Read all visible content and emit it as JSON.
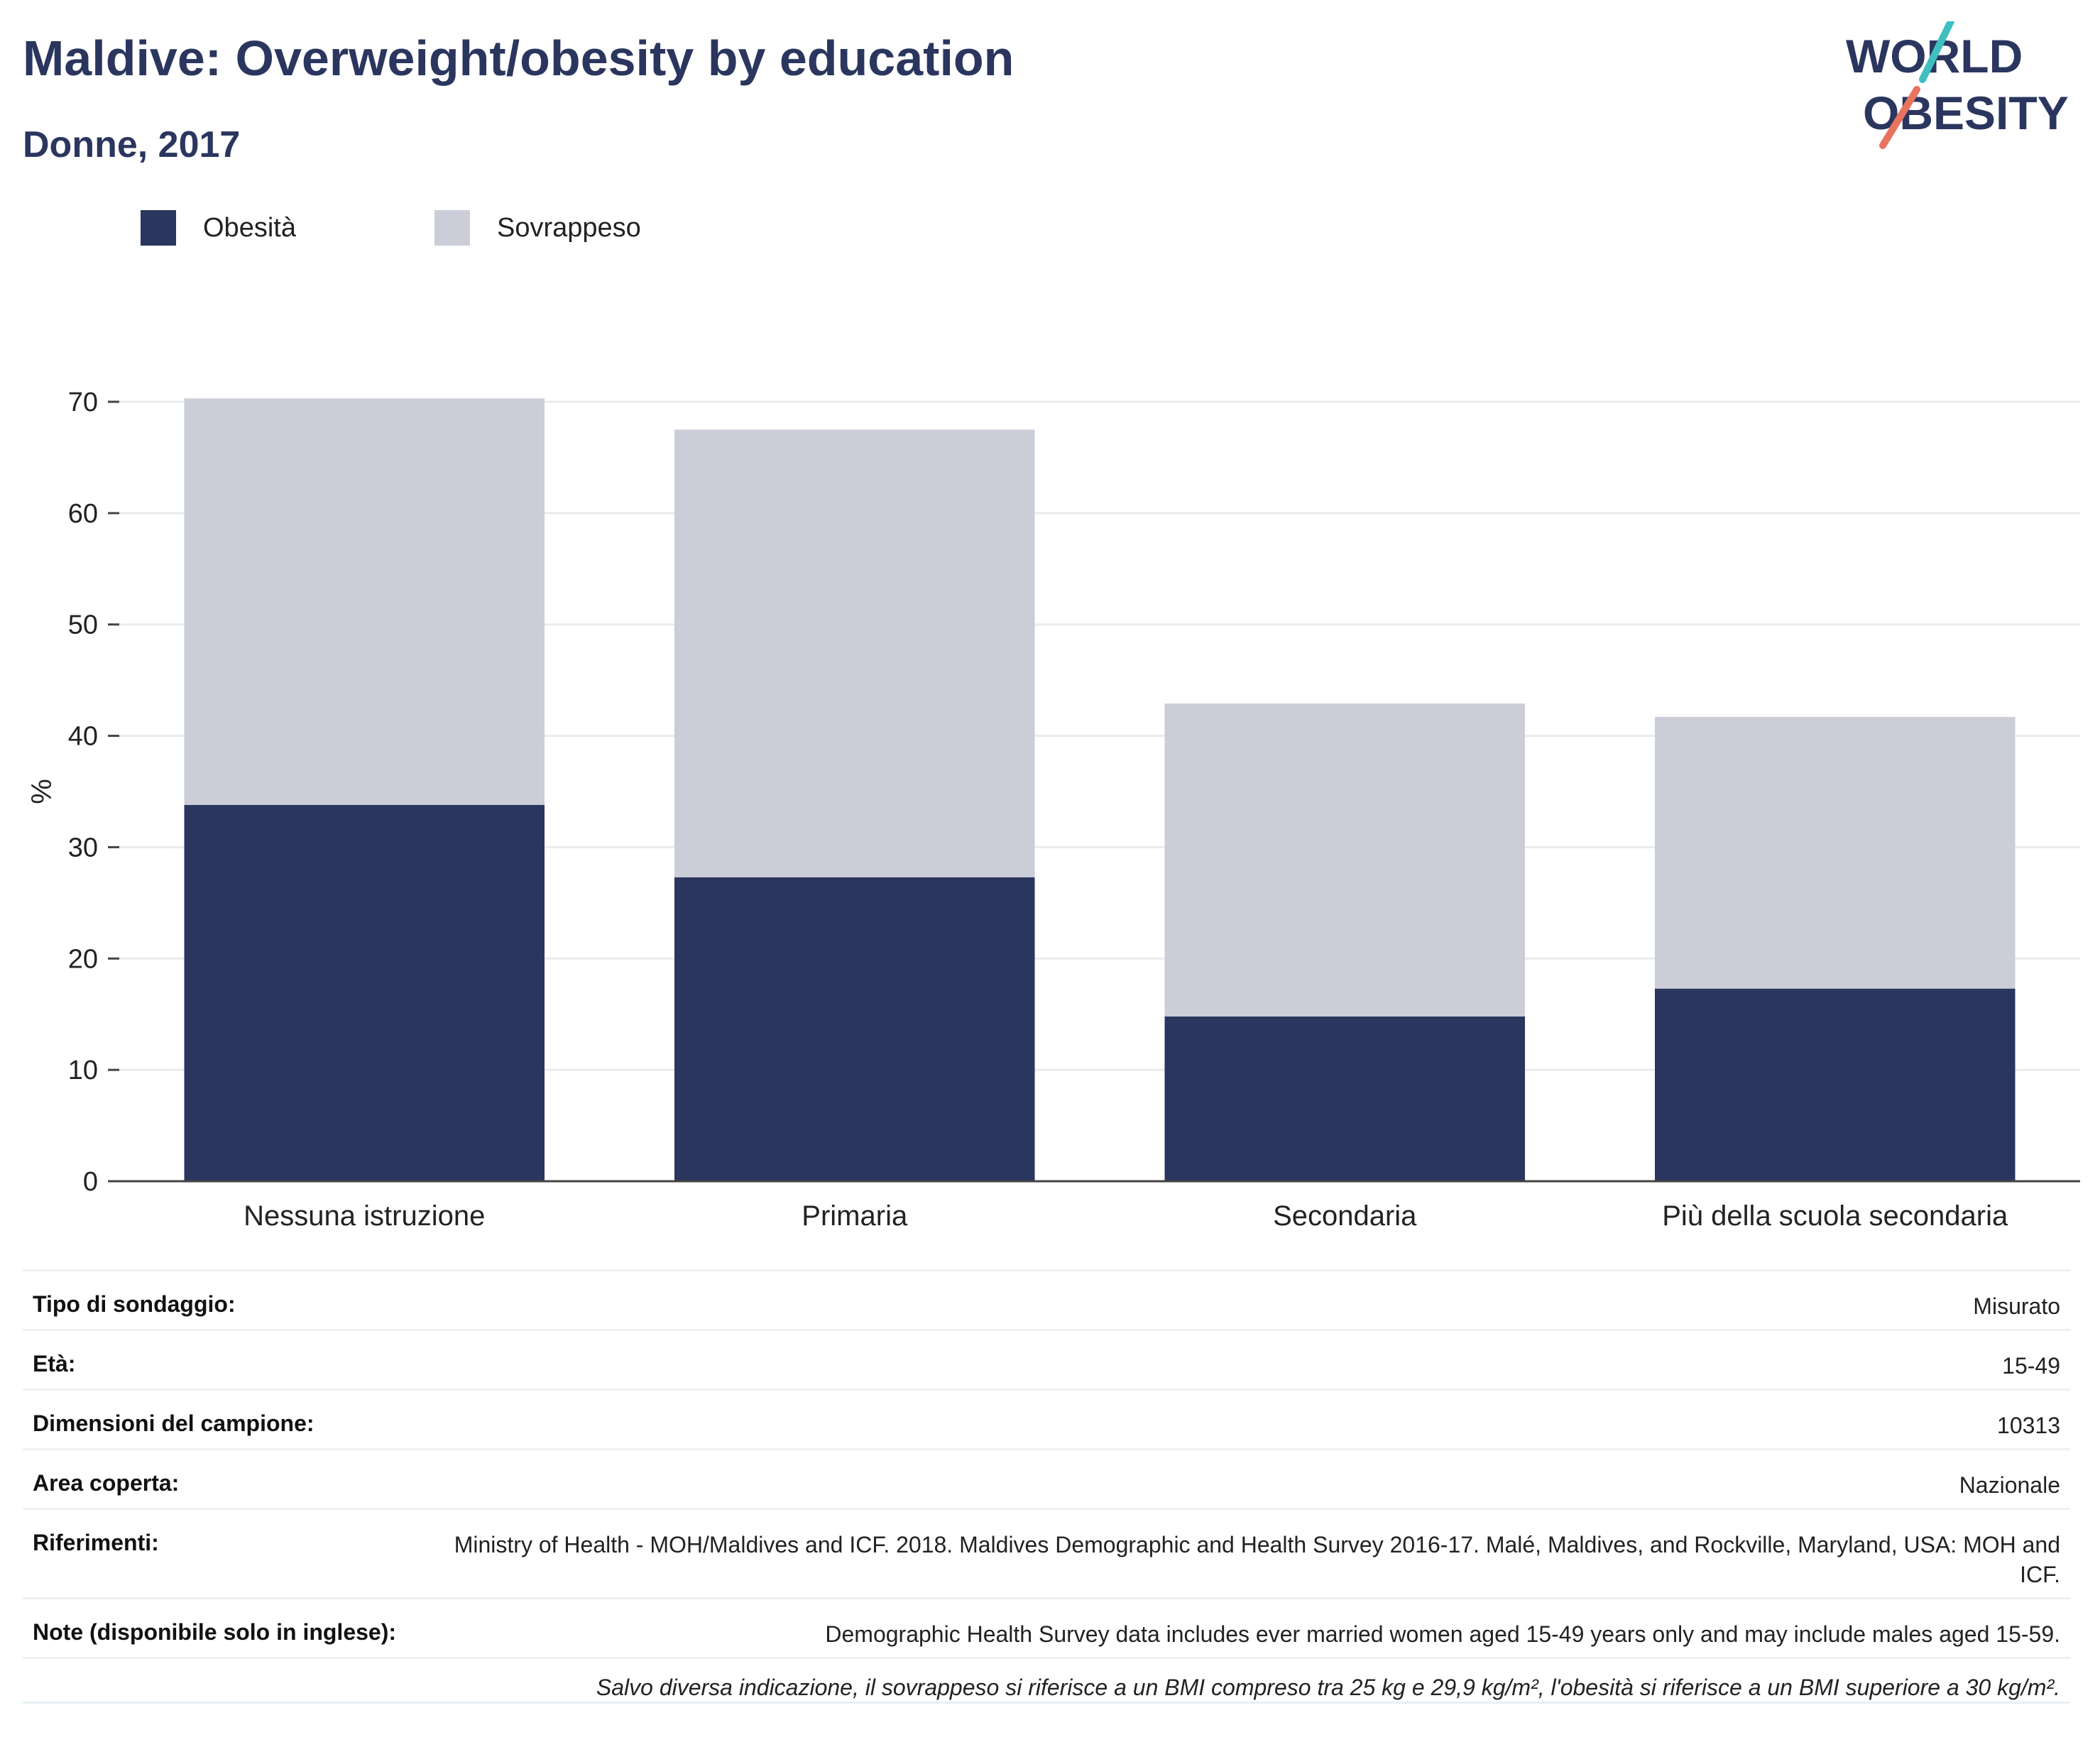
{
  "header": {
    "title": "Maldive: Overweight/obesity by education",
    "subtitle": "Donne, 2017"
  },
  "logo": {
    "line1": "WORLD",
    "line2": "OBESITY"
  },
  "colors": {
    "obesity": "#2b365f",
    "overweight": "#cbcdd8",
    "title": "#2b365f",
    "logo_teal": "#3fbfbf",
    "logo_coral": "#e8735f"
  },
  "chart_data": {
    "type": "bar",
    "stacked": true,
    "categories": [
      "Nessuna istruzione",
      "Primaria",
      "Secondaria",
      "Più della scuola secondaria"
    ],
    "series": [
      {
        "name": "Obesità",
        "values": [
          33.8,
          27.3,
          14.8,
          17.3
        ]
      },
      {
        "name": "Sovrappeso",
        "values": [
          36.5,
          40.2,
          28.1,
          24.4
        ]
      }
    ],
    "ylabel": "%",
    "ylim": [
      0,
      70
    ],
    "yticks": [
      0,
      10,
      20,
      30,
      40,
      50,
      60,
      70
    ],
    "grid": true,
    "legend": "top-left"
  },
  "meta": {
    "rows": [
      {
        "label": "Tipo di sondaggio:",
        "value": "Misurato"
      },
      {
        "label": "Età:",
        "value": "15-49"
      },
      {
        "label": "Dimensioni del campione:",
        "value": "10313"
      },
      {
        "label": "Area coperta:",
        "value": "Nazionale"
      },
      {
        "label": "Riferimenti:",
        "value": "Ministry of Health - MOH/Maldives and ICF. 2018. Maldives Demographic and Health Survey 2016-17. Malé, Maldives, and Rockville, Maryland, USA: MOH and ICF."
      },
      {
        "label": "Note (disponibile solo in inglese):",
        "value": "Demographic Health Survey data includes ever married women aged 15-49 years only and may include males aged 15-59."
      }
    ],
    "footnote": "Salvo diversa indicazione, il sovrappeso si riferisce a un BMI compreso tra 25 kg e 29,9 kg/m², l'obesità si riferisce a un BMI superiore a 30 kg/m²."
  }
}
